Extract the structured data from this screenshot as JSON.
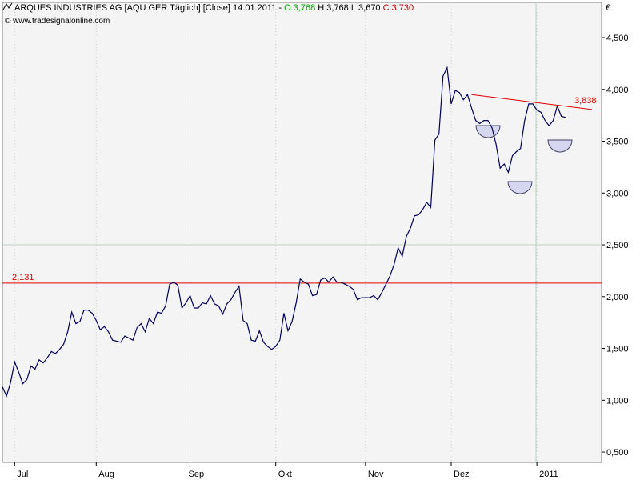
{
  "chart_data": {
    "type": "line",
    "title": "ARQUES INDUSTRIES AG [AQU GER  Täglich] [Close] 14.01.2011 -",
    "open_label": "O:3,768",
    "high_low_label": "H:3,768 L:3,670",
    "close_label": "C:3,730",
    "credit": "© www.tradesignalonline.com",
    "y_unit": "€",
    "color": "#00005a",
    "values": [
      1.13,
      1.04,
      1.17,
      1.37,
      1.27,
      1.16,
      1.2,
      1.33,
      1.3,
      1.39,
      1.36,
      1.41,
      1.47,
      1.45,
      1.49,
      1.54,
      1.66,
      1.85,
      1.74,
      1.76,
      1.87,
      1.87,
      1.84,
      1.77,
      1.68,
      1.71,
      1.66,
      1.58,
      1.57,
      1.56,
      1.62,
      1.6,
      1.58,
      1.7,
      1.74,
      1.66,
      1.79,
      1.74,
      1.85,
      1.84,
      1.91,
      2.12,
      2.14,
      2.11,
      1.89,
      1.94,
      2.01,
      1.89,
      1.89,
      1.94,
      1.93,
      2.01,
      1.93,
      1.91,
      1.83,
      1.93,
      1.97,
      2.04,
      2.1,
      1.77,
      1.74,
      1.58,
      1.57,
      1.67,
      1.56,
      1.52,
      1.49,
      1.52,
      1.58,
      1.84,
      1.67,
      1.76,
      1.94,
      2.17,
      2.14,
      2.12,
      2.01,
      2.02,
      2.16,
      2.18,
      2.14,
      2.19,
      2.14,
      2.14,
      2.12,
      2.1,
      2.07,
      1.97,
      1.99,
      1.99,
      1.99,
      2.01,
      1.97,
      2.04,
      2.12,
      2.2,
      2.31,
      2.47,
      2.39,
      2.58,
      2.66,
      2.78,
      2.79,
      2.84,
      2.91,
      2.86,
      3.51,
      3.57,
      4.13,
      4.21,
      3.86,
      3.99,
      3.97,
      3.9,
      3.95,
      3.82,
      3.7,
      3.67,
      3.7,
      3.7,
      3.63,
      3.47,
      3.24,
      3.28,
      3.2,
      3.36,
      3.4,
      3.43,
      3.7,
      3.86,
      3.86,
      3.8,
      3.78,
      3.7,
      3.65,
      3.7,
      3.84,
      3.74,
      3.73
    ],
    "categories": [
      null,
      null,
      null,
      "Jul",
      null,
      null,
      null,
      null,
      null,
      null,
      null,
      null,
      null,
      null,
      null,
      null,
      null,
      null,
      null,
      null,
      null,
      null,
      null,
      "Aug",
      null,
      null,
      null,
      null,
      null,
      null,
      null,
      null,
      null,
      null,
      null,
      null,
      null,
      null,
      null,
      null,
      null,
      null,
      null,
      null,
      null,
      "Sep",
      null,
      null,
      null,
      null,
      null,
      null,
      null,
      null,
      null,
      null,
      null,
      null,
      null,
      null,
      null,
      null,
      null,
      null,
      null,
      null,
      null,
      "Okt",
      null,
      null,
      null,
      null,
      null,
      null,
      null,
      null,
      null,
      null,
      null,
      null,
      null,
      null,
      null,
      null,
      null,
      null,
      null,
      null,
      null,
      "Nov",
      null,
      null,
      null,
      null,
      null,
      null,
      null,
      null,
      null,
      null,
      null,
      null,
      null,
      null,
      null,
      null,
      null,
      null,
      null,
      null,
      "Dez",
      null,
      null,
      null,
      null,
      null,
      null,
      null,
      null,
      null,
      null,
      null,
      null,
      null,
      null,
      null,
      null,
      null,
      null,
      null,
      null,
      "2011",
      null,
      null,
      null,
      null,
      null,
      null,
      null
    ],
    "ylim": [
      0.4,
      4.84
    ],
    "yticks": [
      {
        "value": 0.5,
        "label": "0,500"
      },
      {
        "value": 1,
        "label": "1,000"
      },
      {
        "value": 1.5,
        "label": "1,500"
      },
      {
        "value": 2,
        "label": "2,000"
      },
      {
        "value": 2.5,
        "label": "2,500"
      },
      {
        "value": 3,
        "label": "3,000"
      },
      {
        "value": 3.5,
        "label": "3,500"
      },
      {
        "value": 4,
        "label": "4,000"
      },
      {
        "value": 4.5,
        "label": "4,500"
      }
    ],
    "hline": {
      "value": 2.131,
      "label": "2,131",
      "color": "#e00000"
    },
    "trendline": {
      "values": [
        3.95,
        3.838
      ],
      "label": "3,838",
      "color": "#e00000"
    }
  }
}
